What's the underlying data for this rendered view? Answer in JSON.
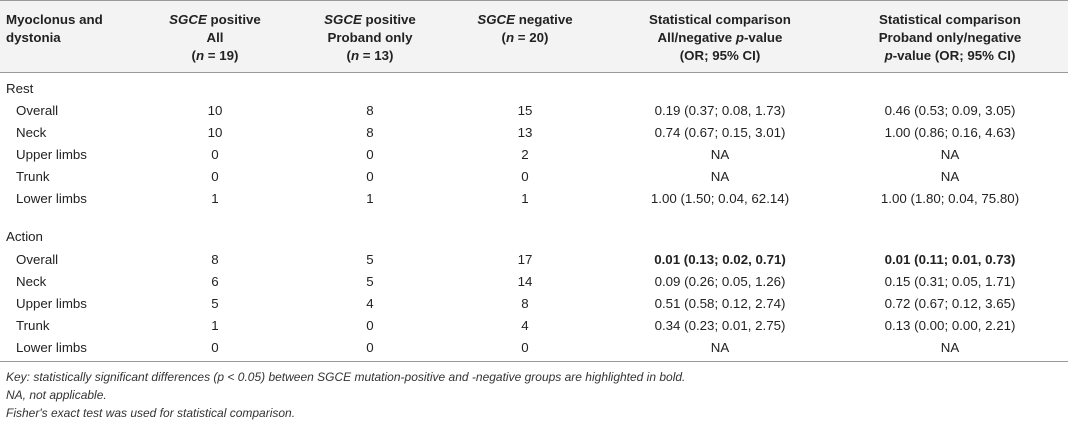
{
  "headers": {
    "col1": [
      "Myoclonus and",
      "dystonia"
    ],
    "col2": [
      "SGCE",
      " positive",
      "All",
      "(",
      "n",
      " = 19)"
    ],
    "col3": [
      "SGCE",
      " positive",
      "Proband only",
      "(",
      "n",
      " = 13)"
    ],
    "col4": [
      "SGCE",
      " negative",
      "(",
      "n",
      " = 20)"
    ],
    "col5": [
      "Statistical comparison",
      "All/negative ",
      "p",
      "-value",
      "(OR; 95% CI)"
    ],
    "col6": [
      "Statistical comparison",
      "Proband only/negative",
      "p",
      "-value (OR; 95% CI)"
    ]
  },
  "sections": [
    {
      "label": "Rest",
      "rows": [
        {
          "name": "Overall",
          "all": "10",
          "proband": "8",
          "negative": "15",
          "cmp_all": "0.19 (0.37; 0.08, 1.73)",
          "cmp_proband": "0.46 (0.53; 0.09, 3.05)",
          "bold": false
        },
        {
          "name": "Neck",
          "all": "10",
          "proband": "8",
          "negative": "13",
          "cmp_all": "0.74 (0.67; 0.15, 3.01)",
          "cmp_proband": "1.00 (0.86; 0.16, 4.63)",
          "bold": false
        },
        {
          "name": "Upper limbs",
          "all": "0",
          "proband": "0",
          "negative": "2",
          "cmp_all": "NA",
          "cmp_proband": "NA",
          "bold": false
        },
        {
          "name": "Trunk",
          "all": "0",
          "proband": "0",
          "negative": "0",
          "cmp_all": "NA",
          "cmp_proband": "NA",
          "bold": false
        },
        {
          "name": "Lower limbs",
          "all": "1",
          "proband": "1",
          "negative": "1",
          "cmp_all": "1.00 (1.50; 0.04, 62.14)",
          "cmp_proband": "1.00 (1.80; 0.04, 75.80)",
          "bold": false
        }
      ]
    },
    {
      "label": "Action",
      "rows": [
        {
          "name": "Overall",
          "all": "8",
          "proband": "5",
          "negative": "17",
          "cmp_all": "0.01 (0.13; 0.02, 0.71)",
          "cmp_proband": "0.01 (0.11; 0.01, 0.73)",
          "bold": true
        },
        {
          "name": "Neck",
          "all": "6",
          "proband": "5",
          "negative": "14",
          "cmp_all": "0.09 (0.26; 0.05, 1.26)",
          "cmp_proband": "0.15 (0.31; 0.05, 1.71)",
          "bold": false
        },
        {
          "name": "Upper limbs",
          "all": "5",
          "proband": "4",
          "negative": "8",
          "cmp_all": "0.51 (0.58; 0.12, 2.74)",
          "cmp_proband": "0.72 (0.67; 0.12, 3.65)",
          "bold": false
        },
        {
          "name": "Trunk",
          "all": "1",
          "proband": "0",
          "negative": "4",
          "cmp_all": "0.34 (0.23; 0.01, 2.75)",
          "cmp_proband": "0.13 (0.00; 0.00, 2.21)",
          "bold": false
        },
        {
          "name": "Lower limbs",
          "all": "0",
          "proband": "0",
          "negative": "0",
          "cmp_all": "NA",
          "cmp_proband": "NA",
          "bold": false
        }
      ]
    }
  ],
  "notes": [
    "Key: statistically significant differences (p < 0.05) between SGCE mutation-positive and -negative groups are highlighted in bold.",
    "NA, not applicable.",
    "Fisher's exact test was used for statistical comparison."
  ]
}
